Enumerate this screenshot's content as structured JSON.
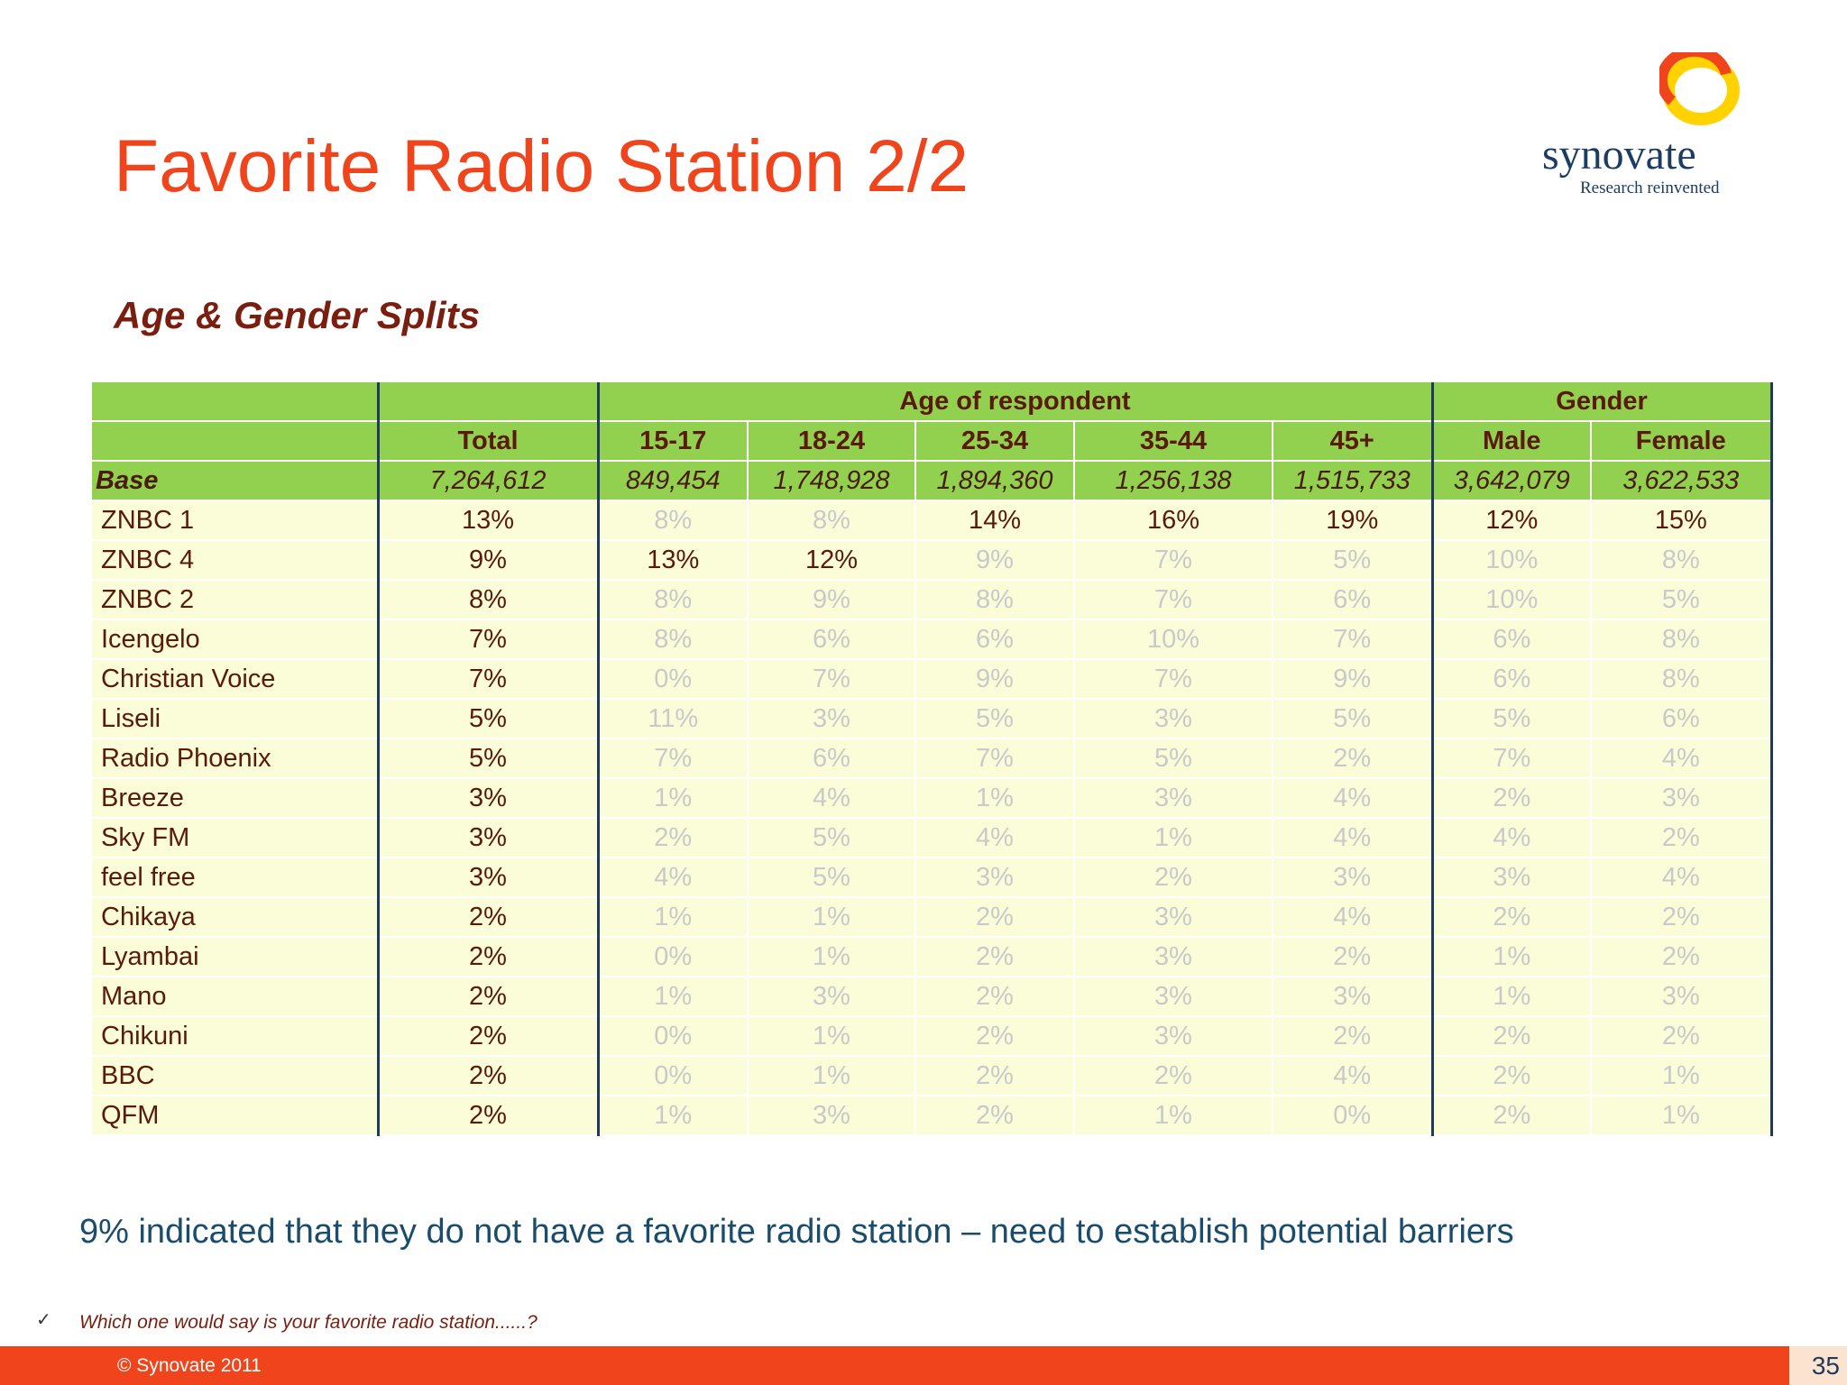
{
  "title": "Favorite Radio Station 2/2",
  "logo": {
    "word": "synovate",
    "tagline": "Research reinvented",
    "accent_orange": "#f0441c",
    "accent_yellow": "#ffd200"
  },
  "subtitle": "Age & Gender Splits",
  "table": {
    "group_headers": {
      "age": "Age of respondent",
      "gender": "Gender"
    },
    "columns": [
      "Total",
      "15-17",
      "18-24",
      "25-34",
      "35-44",
      "45+",
      "Male",
      "Female"
    ],
    "base": {
      "label": "Base",
      "values": [
        "7,264,612",
        "849,454",
        "1,748,928",
        "1,894,360",
        "1,256,138",
        "1,515,733",
        "3,642,079",
        "3,622,533"
      ]
    },
    "rows": [
      {
        "label": "ZNBC 1",
        "values": [
          "13%",
          "8%",
          "8%",
          "14%",
          "16%",
          "19%",
          "12%",
          "15%"
        ],
        "highlight": [
          true,
          false,
          false,
          true,
          true,
          true,
          true,
          true
        ]
      },
      {
        "label": "ZNBC 4",
        "values": [
          "9%",
          "13%",
          "12%",
          "9%",
          "7%",
          "5%",
          "10%",
          "8%"
        ],
        "highlight": [
          true,
          true,
          true,
          false,
          false,
          false,
          false,
          false
        ]
      },
      {
        "label": "ZNBC 2",
        "values": [
          "8%",
          "8%",
          "9%",
          "8%",
          "7%",
          "6%",
          "10%",
          "5%"
        ],
        "highlight": [
          true,
          false,
          false,
          false,
          false,
          false,
          false,
          false
        ]
      },
      {
        "label": "Icengelo",
        "values": [
          "7%",
          "8%",
          "6%",
          "6%",
          "10%",
          "7%",
          "6%",
          "8%"
        ],
        "highlight": [
          true,
          false,
          false,
          false,
          false,
          false,
          false,
          false
        ]
      },
      {
        "label": "Christian Voice",
        "values": [
          "7%",
          "0%",
          "7%",
          "9%",
          "7%",
          "9%",
          "6%",
          "8%"
        ],
        "highlight": [
          true,
          false,
          false,
          false,
          false,
          false,
          false,
          false
        ]
      },
      {
        "label": "Liseli",
        "values": [
          "5%",
          "11%",
          "3%",
          "5%",
          "3%",
          "5%",
          "5%",
          "6%"
        ],
        "highlight": [
          true,
          false,
          false,
          false,
          false,
          false,
          false,
          false
        ]
      },
      {
        "label": "Radio Phoenix",
        "values": [
          "5%",
          "7%",
          "6%",
          "7%",
          "5%",
          "2%",
          "7%",
          "4%"
        ],
        "highlight": [
          true,
          false,
          false,
          false,
          false,
          false,
          false,
          false
        ]
      },
      {
        "label": "Breeze",
        "values": [
          "3%",
          "1%",
          "4%",
          "1%",
          "3%",
          "4%",
          "2%",
          "3%"
        ],
        "highlight": [
          true,
          false,
          false,
          false,
          false,
          false,
          false,
          false
        ]
      },
      {
        "label": "Sky FM",
        "values": [
          "3%",
          "2%",
          "5%",
          "4%",
          "1%",
          "4%",
          "4%",
          "2%"
        ],
        "highlight": [
          true,
          false,
          false,
          false,
          false,
          false,
          false,
          false
        ]
      },
      {
        "label": "feel free",
        "values": [
          "3%",
          "4%",
          "5%",
          "3%",
          "2%",
          "3%",
          "3%",
          "4%"
        ],
        "highlight": [
          true,
          false,
          false,
          false,
          false,
          false,
          false,
          false
        ]
      },
      {
        "label": "Chikaya",
        "values": [
          "2%",
          "1%",
          "1%",
          "2%",
          "3%",
          "4%",
          "2%",
          "2%"
        ],
        "highlight": [
          true,
          false,
          false,
          false,
          false,
          false,
          false,
          false
        ]
      },
      {
        "label": "Lyambai",
        "values": [
          "2%",
          "0%",
          "1%",
          "2%",
          "3%",
          "2%",
          "1%",
          "2%"
        ],
        "highlight": [
          true,
          false,
          false,
          false,
          false,
          false,
          false,
          false
        ]
      },
      {
        "label": "Mano",
        "values": [
          "2%",
          "1%",
          "3%",
          "2%",
          "3%",
          "3%",
          "1%",
          "3%"
        ],
        "highlight": [
          true,
          false,
          false,
          false,
          false,
          false,
          false,
          false
        ]
      },
      {
        "label": "Chikuni",
        "values": [
          "2%",
          "0%",
          "1%",
          "2%",
          "3%",
          "2%",
          "2%",
          "2%"
        ],
        "highlight": [
          true,
          false,
          false,
          false,
          false,
          false,
          false,
          false
        ]
      },
      {
        "label": "BBC",
        "values": [
          "2%",
          "0%",
          "1%",
          "2%",
          "2%",
          "4%",
          "2%",
          "1%"
        ],
        "highlight": [
          true,
          false,
          false,
          false,
          false,
          false,
          false,
          false
        ]
      },
      {
        "label": "QFM",
        "values": [
          "2%",
          "1%",
          "3%",
          "2%",
          "1%",
          "0%",
          "2%",
          "1%"
        ],
        "highlight": [
          true,
          false,
          false,
          false,
          false,
          false,
          false,
          false
        ]
      }
    ]
  },
  "chart_data": {
    "type": "table",
    "columns": [
      "Total",
      "15-17",
      "18-24",
      "25-34",
      "35-44",
      "45+",
      "Male",
      "Female"
    ],
    "column_groups": [
      {
        "name": "Age of respondent",
        "columns": [
          "15-17",
          "18-24",
          "25-34",
          "35-44",
          "45+"
        ]
      },
      {
        "name": "Gender",
        "columns": [
          "Male",
          "Female"
        ]
      }
    ],
    "base": [
      7264612,
      849454,
      1748928,
      1894360,
      1256138,
      1515733,
      3642079,
      3622533
    ],
    "rows": [
      "ZNBC 1",
      "ZNBC 4",
      "ZNBC 2",
      "Icengelo",
      "Christian Voice",
      "Liseli",
      "Radio Phoenix",
      "Breeze",
      "Sky FM",
      "feel free",
      "Chikaya",
      "Lyambai",
      "Mano",
      "Chikuni",
      "BBC",
      "QFM"
    ],
    "values_percent": [
      [
        13,
        8,
        8,
        14,
        16,
        19,
        12,
        15
      ],
      [
        9,
        13,
        12,
        9,
        7,
        5,
        10,
        8
      ],
      [
        8,
        8,
        9,
        8,
        7,
        6,
        10,
        5
      ],
      [
        7,
        8,
        6,
        6,
        10,
        7,
        6,
        8
      ],
      [
        7,
        0,
        7,
        9,
        7,
        9,
        6,
        8
      ],
      [
        5,
        11,
        3,
        5,
        3,
        5,
        5,
        6
      ],
      [
        5,
        7,
        6,
        7,
        5,
        2,
        7,
        4
      ],
      [
        3,
        1,
        4,
        1,
        3,
        4,
        2,
        3
      ],
      [
        3,
        2,
        5,
        4,
        1,
        4,
        4,
        2
      ],
      [
        3,
        4,
        5,
        3,
        2,
        3,
        3,
        4
      ],
      [
        2,
        1,
        1,
        2,
        3,
        4,
        2,
        2
      ],
      [
        2,
        0,
        1,
        2,
        3,
        2,
        1,
        2
      ],
      [
        2,
        1,
        3,
        2,
        3,
        3,
        1,
        3
      ],
      [
        2,
        0,
        1,
        2,
        3,
        2,
        2,
        2
      ],
      [
        2,
        0,
        1,
        2,
        2,
        4,
        2,
        1
      ],
      [
        2,
        1,
        3,
        2,
        1,
        0,
        2,
        1
      ]
    ]
  },
  "note": "9% indicated that they do not have a favorite radio station – need to establish potential barriers",
  "question": "Which one would say is your favorite radio station......?",
  "check_mark": "✓",
  "footer": {
    "copyright": "© Synovate 2011",
    "page_number": "35"
  }
}
